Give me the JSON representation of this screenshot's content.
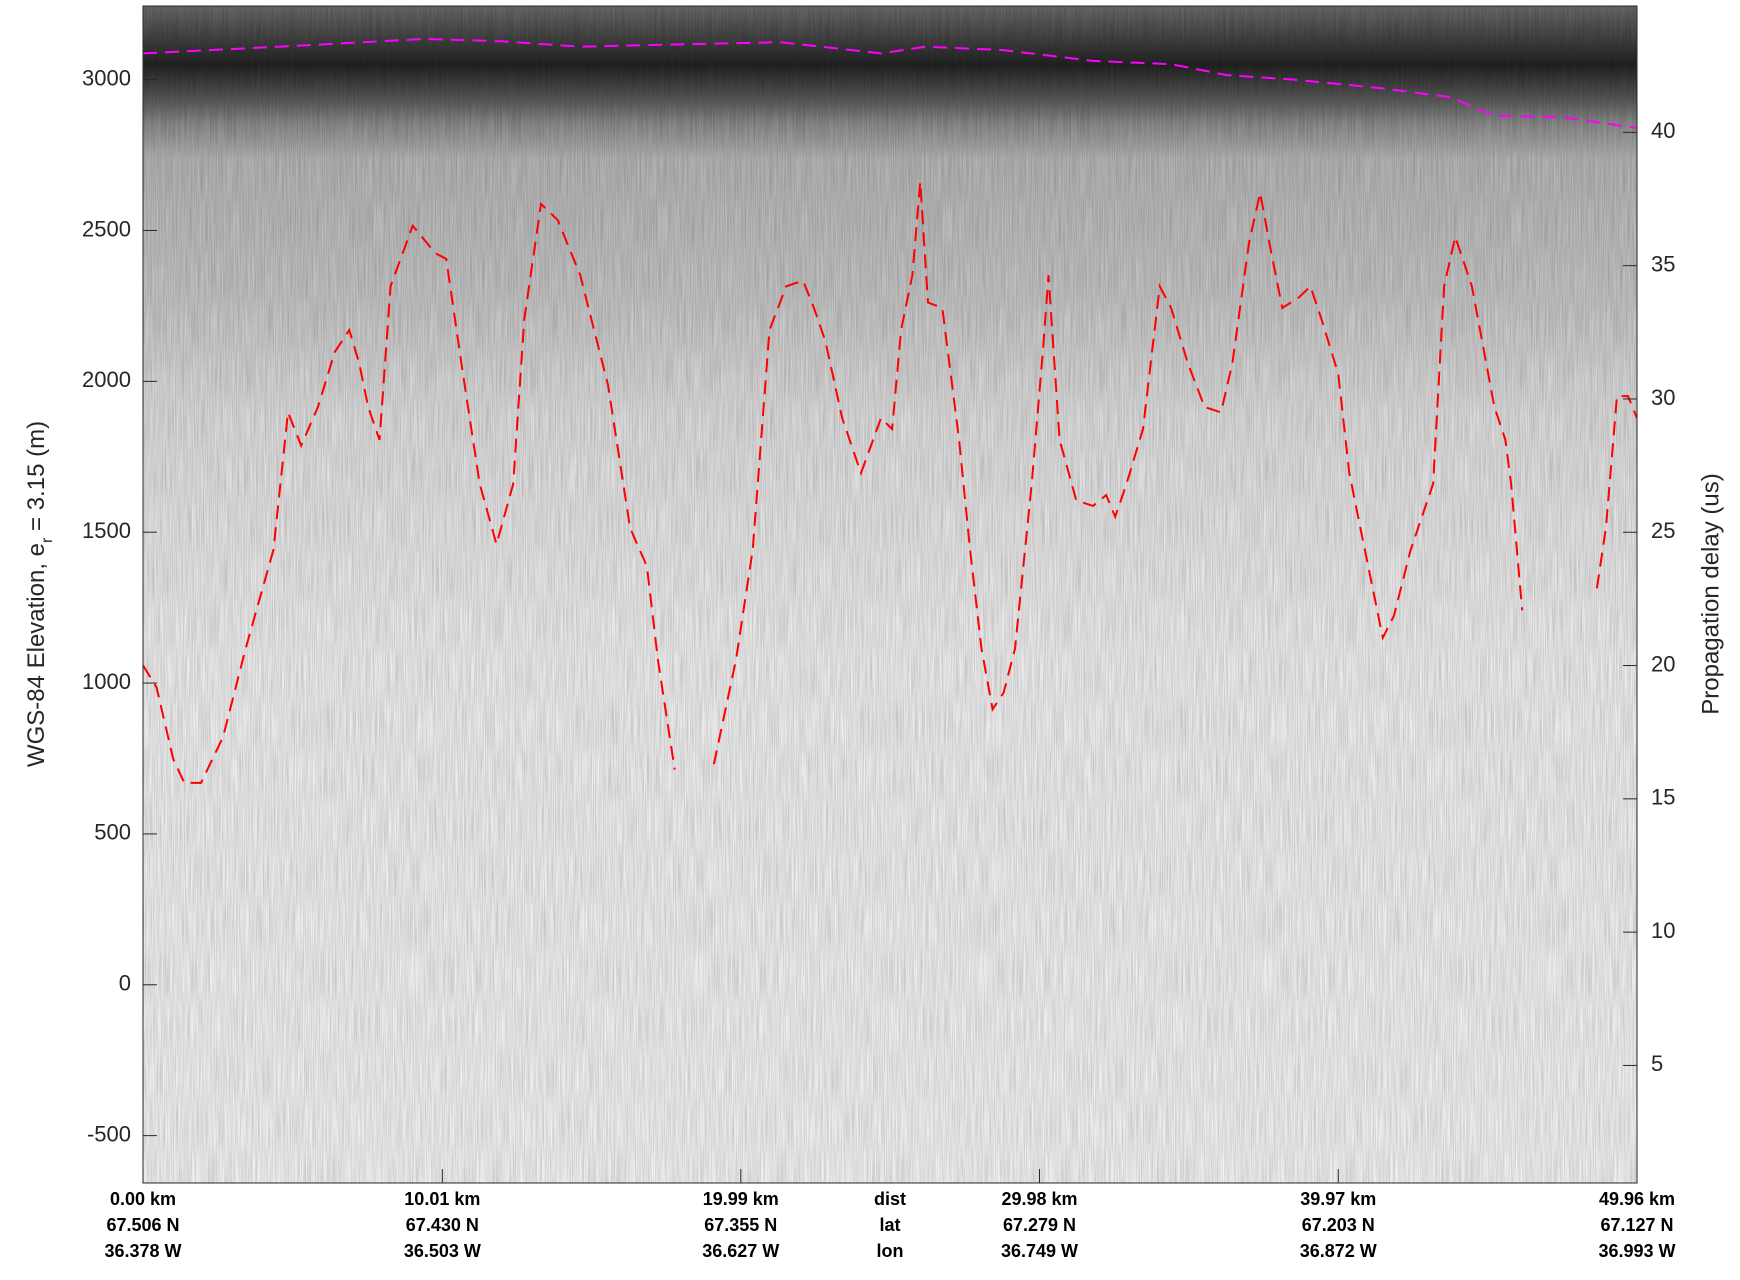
{
  "chart_data": {
    "type": "line",
    "xlim": [
      0,
      49.96
    ],
    "xticks": [
      {
        "value": 0,
        "label": "0.00 km"
      },
      {
        "value": 10.01,
        "label": "10.01 km"
      },
      {
        "value": 19.99,
        "label": "19.99 km"
      },
      {
        "value": 29.98,
        "label": "29.98 km"
      },
      {
        "value": 39.97,
        "label": "39.97 km"
      },
      {
        "value": 49.96,
        "label": "49.96 km"
      }
    ],
    "xtick_lat": [
      "67.506 N",
      "67.430 N",
      "67.355 N",
      "67.279 N",
      "67.203 N",
      "67.127 N"
    ],
    "xtick_lon": [
      "36.378 W",
      "36.503 W",
      "36.627 W",
      "36.749 W",
      "36.872 W",
      "36.993 W"
    ],
    "xtick_row_labels": [
      "dist",
      "lat",
      "lon"
    ],
    "ylabel": [
      "WGS-84 Elevation, e",
      "r",
      " = 3.15 (m)"
    ],
    "ylim": [
      -657,
      3244
    ],
    "yticks": [
      -500,
      0,
      500,
      1000,
      1500,
      2000,
      2500,
      3000
    ],
    "y2label": "Propagation delay (us)",
    "y2lim": [
      0.59,
      44.74
    ],
    "y2ticks": [
      5,
      10,
      15,
      20,
      25,
      30,
      35,
      40
    ],
    "series": [
      {
        "color": "#ff00ff",
        "line_style": "dashed",
        "x": [
          0,
          4.55,
          9.4,
          12.0,
          14.62,
          17.6,
          21.33,
          24.68,
          26.17,
          28.78,
          31.77,
          34.38,
          36.24,
          38.48,
          41.46,
          43.7,
          45.19,
          47.43,
          49.96
        ],
        "values": [
          3087,
          3109,
          3135,
          3127,
          3109,
          3116,
          3124,
          3087,
          3109,
          3098,
          3062,
          3051,
          3015,
          3000,
          2971,
          2942,
          2880,
          2876,
          2840
        ]
      },
      {
        "color": "#ff0000",
        "line_style": "dashed",
        "x": [
          0.0,
          0.45,
          1.01,
          1.38,
          1.94,
          2.68,
          3.43,
          4.36,
          4.85,
          5.29,
          5.85,
          6.41,
          6.9,
          7.23,
          7.53,
          7.91,
          8.28,
          9.02,
          9.77,
          10.14,
          10.7,
          11.26,
          11.82,
          12.38,
          12.75,
          13.31,
          13.87,
          14.62,
          15.55,
          16.29,
          16.85,
          17.22,
          17.78,
          18.4,
          19.09,
          19.83,
          20.39,
          20.95,
          21.51,
          22.07,
          22.44,
          22.82,
          23.38,
          24.01,
          24.68,
          25.05,
          25.35,
          25.73,
          25.99,
          26.25,
          26.73,
          27.29,
          27.66,
          28.04,
          28.41,
          28.78,
          29.16,
          29.72,
          30.09,
          30.28,
          30.65,
          31.21,
          31.77,
          32.21,
          32.51,
          32.89,
          33.44,
          34.0,
          34.38,
          34.94,
          35.5,
          36.05,
          36.43,
          36.99,
          37.36,
          37.73,
          38.1,
          38.66,
          39.04,
          39.41,
          39.97,
          40.34,
          40.71,
          41.46,
          41.83,
          42.39,
          43.14,
          43.51,
          43.88,
          44.44,
          45.19,
          45.56,
          45.75,
          46.12,
          47.3,
          48.62,
          48.92,
          49.29,
          49.66,
          49.96
        ],
        "values": [
          1059,
          986,
          749,
          669,
          669,
          822,
          1114,
          1441,
          1897,
          1787,
          1915,
          2097,
          2170,
          2060,
          1915,
          1806,
          2315,
          2516,
          2425,
          2406,
          2024,
          1660,
          1460,
          1660,
          2206,
          2588,
          2534,
          2352,
          1988,
          1514,
          1387,
          1077,
          713,
          null,
          731,
          1077,
          1441,
          2170,
          2315,
          2334,
          2243,
          2133,
          1878,
          1696,
          1878,
          1842,
          2170,
          2352,
          2661,
          2261,
          2243,
          1806,
          1441,
          1114,
          913,
          968,
          1114,
          1660,
          2097,
          2352,
          1806,
          1605,
          1587,
          1623,
          1551,
          1660,
          1842,
          2315,
          2243,
          2060,
          1915,
          1897,
          2060,
          2461,
          2625,
          2425,
          2243,
          2279,
          2315,
          2206,
          2024,
          1696,
          1514,
          1150,
          1223,
          1441,
          1660,
          2315,
          2479,
          2315,
          1915,
          1806,
          1660,
          1241,
          null,
          1314,
          1514,
          1951,
          1951,
          1878
        ]
      }
    ]
  }
}
